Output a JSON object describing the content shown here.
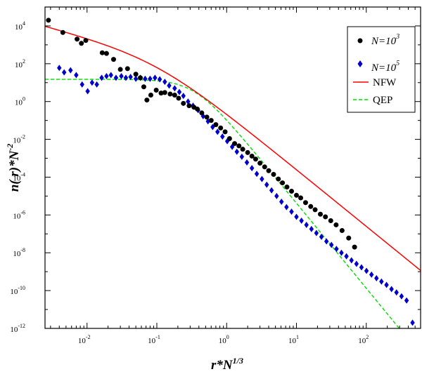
{
  "chart_data": {
    "type": "scatter",
    "xscale": "log",
    "yscale": "log",
    "xlim": [
      0.0025,
      600
    ],
    "ylim": [
      1e-12,
      100000.0
    ],
    "xlabel": {
      "base": "r*N",
      "exp": "1/3"
    },
    "ylabel": {
      "base": "n( r)*N",
      "exp": "-2"
    },
    "xticks": [
      {
        "value": 0.01,
        "base": "10",
        "exp": "-2"
      },
      {
        "value": 0.1,
        "base": "10",
        "exp": "-1"
      },
      {
        "value": 1,
        "base": "10",
        "exp": "0"
      },
      {
        "value": 10,
        "base": "10",
        "exp": "1"
      },
      {
        "value": 100,
        "base": "10",
        "exp": "2"
      }
    ],
    "yticks": [
      {
        "value": 1e-12,
        "base": "10",
        "exp": "-12"
      },
      {
        "value": 1e-10,
        "base": "10",
        "exp": "-10"
      },
      {
        "value": 1e-08,
        "base": "10",
        "exp": "-8"
      },
      {
        "value": 1e-06,
        "base": "10",
        "exp": "-6"
      },
      {
        "value": 0.0001,
        "base": "10",
        "exp": "-4"
      },
      {
        "value": 0.01,
        "base": "10",
        "exp": "-2"
      },
      {
        "value": 1,
        "base": "10",
        "exp": "0"
      },
      {
        "value": 100,
        "base": "10",
        "exp": "2"
      },
      {
        "value": 10000,
        "base": "10",
        "exp": "4"
      }
    ],
    "legend": {
      "position": "top-right",
      "entries": [
        {
          "key": "n3",
          "base": "N=10",
          "exp": "3",
          "marker": "circle",
          "color": "#000000"
        },
        {
          "key": "n5",
          "base": "N=10",
          "exp": "5",
          "marker": "diamond",
          "color": "#0000cc"
        },
        {
          "key": "nfw",
          "label": "NFW",
          "marker": "line",
          "color": "#ff0000"
        },
        {
          "key": "qep",
          "label": "QEP",
          "marker": "dashed",
          "color": "#00dd00"
        }
      ]
    },
    "series": [
      {
        "name": "N=10^3",
        "marker": "circle",
        "color": "#000000",
        "points": [
          [
            0.0028,
            20000
          ],
          [
            0.0045,
            4500
          ],
          [
            0.0072,
            2000
          ],
          [
            0.0083,
            1200
          ],
          [
            0.0096,
            1700
          ],
          [
            0.0165,
            380
          ],
          [
            0.019,
            350
          ],
          [
            0.024,
            170
          ],
          [
            0.03,
            50
          ],
          [
            0.038,
            55
          ],
          [
            0.05,
            28
          ],
          [
            0.058,
            18
          ],
          [
            0.065,
            6
          ],
          [
            0.072,
            1.2
          ],
          [
            0.082,
            2.2
          ],
          [
            0.098,
            4
          ],
          [
            0.115,
            2.8
          ],
          [
            0.13,
            3
          ],
          [
            0.155,
            2.5
          ],
          [
            0.18,
            2.2
          ],
          [
            0.205,
            1.5
          ],
          [
            0.24,
            0.8
          ],
          [
            0.29,
            0.6
          ],
          [
            0.34,
            0.5
          ],
          [
            0.38,
            0.4
          ],
          [
            0.44,
            0.25
          ],
          [
            0.52,
            0.15
          ],
          [
            0.6,
            0.1
          ],
          [
            0.7,
            0.06
          ],
          [
            0.82,
            0.04
          ],
          [
            0.95,
            0.025
          ],
          [
            1.1,
            0.011
          ],
          [
            1.3,
            0.006
          ],
          [
            1.5,
            0.0045
          ],
          [
            1.7,
            0.003
          ],
          [
            2,
            0.002
          ],
          [
            2.3,
            0.0013
          ],
          [
            2.6,
            0.0009
          ],
          [
            3,
            0.00055
          ],
          [
            3.5,
            0.00035
          ],
          [
            4,
            0.00022
          ],
          [
            4.7,
            0.00014
          ],
          [
            5.5,
            8e-05
          ],
          [
            6.3,
            5e-05
          ],
          [
            7.3,
            3e-05
          ],
          [
            8.5,
            1.8e-05
          ],
          [
            10,
            1.1e-05
          ],
          [
            11.5,
            8e-06
          ],
          [
            13.5,
            4.5e-06
          ],
          [
            16,
            2.8e-06
          ],
          [
            18.5,
            1.9e-06
          ],
          [
            22,
            1.1e-06
          ],
          [
            26,
            8e-07
          ],
          [
            31,
            5e-07
          ],
          [
            37,
            3e-07
          ],
          [
            45,
            1.5e-07
          ],
          [
            56,
            6e-08
          ],
          [
            68,
            2e-08
          ]
        ]
      },
      {
        "name": "N=10^5",
        "marker": "diamond",
        "color": "#0000cc",
        "points": [
          [
            0.004,
            60
          ],
          [
            0.0047,
            35
          ],
          [
            0.0058,
            45
          ],
          [
            0.007,
            25
          ],
          [
            0.0085,
            8
          ],
          [
            0.0102,
            3.5
          ],
          [
            0.0118,
            10
          ],
          [
            0.0138,
            8
          ],
          [
            0.0162,
            18
          ],
          [
            0.019,
            22
          ],
          [
            0.022,
            25
          ],
          [
            0.026,
            18
          ],
          [
            0.031,
            22
          ],
          [
            0.036,
            18
          ],
          [
            0.042,
            20
          ],
          [
            0.05,
            16
          ],
          [
            0.058,
            18
          ],
          [
            0.068,
            16
          ],
          [
            0.08,
            16
          ],
          [
            0.094,
            18
          ],
          [
            0.11,
            15
          ],
          [
            0.13,
            11
          ],
          [
            0.15,
            7
          ],
          [
            0.18,
            5
          ],
          [
            0.21,
            3.2
          ],
          [
            0.24,
            2
          ],
          [
            0.28,
            1
          ],
          [
            0.33,
            0.6
          ],
          [
            0.39,
            0.35
          ],
          [
            0.46,
            0.17
          ],
          [
            0.54,
            0.09
          ],
          [
            0.63,
            0.045
          ],
          [
            0.74,
            0.025
          ],
          [
            0.87,
            0.014
          ],
          [
            1.02,
            0.008
          ],
          [
            1.2,
            0.004
          ],
          [
            1.4,
            0.0022
          ],
          [
            1.65,
            0.0012
          ],
          [
            1.95,
            0.0006
          ],
          [
            2.3,
            0.0003
          ],
          [
            2.7,
            0.00015
          ],
          [
            3.2,
            8e-05
          ],
          [
            3.75,
            4e-05
          ],
          [
            4.4,
            2e-05
          ],
          [
            5.2,
            1e-05
          ],
          [
            6.1,
            5e-06
          ],
          [
            7.2,
            2.6e-06
          ],
          [
            8.5,
            1.5e-06
          ],
          [
            10,
            8e-07
          ],
          [
            11.8,
            5e-07
          ],
          [
            13.9,
            3e-07
          ],
          [
            16.4,
            1.8e-07
          ],
          [
            19.3,
            1.1e-07
          ],
          [
            22.8,
            7e-08
          ],
          [
            26.9,
            4e-08
          ],
          [
            31.7,
            2.6e-08
          ],
          [
            37.4,
            1.6e-08
          ],
          [
            44.1,
            1e-08
          ],
          [
            52,
            6.5e-09
          ],
          [
            61.4,
            4e-09
          ],
          [
            72.4,
            2.6e-09
          ],
          [
            85.4,
            1.7e-09
          ],
          [
            100.7,
            1.1e-09
          ],
          [
            118.8,
            7e-10
          ],
          [
            140,
            4.5e-10
          ],
          [
            165,
            3e-10
          ],
          [
            195,
            2e-10
          ],
          [
            230,
            1.2e-10
          ],
          [
            271,
            8e-11
          ],
          [
            320,
            5e-11
          ],
          [
            378,
            3e-11
          ],
          [
            460,
            2e-12
          ]
        ]
      },
      {
        "name": "NFW",
        "marker": "line",
        "color": "#ff0000",
        "rs": 0.1,
        "rho0": 250,
        "x_range": [
          0.0025,
          600
        ]
      },
      {
        "name": "QEP",
        "marker": "dashed",
        "color": "#00dd00",
        "n0": 15,
        "rc": 0.35,
        "slope": 4.5,
        "x_range": [
          0.0025,
          600
        ]
      }
    ]
  }
}
